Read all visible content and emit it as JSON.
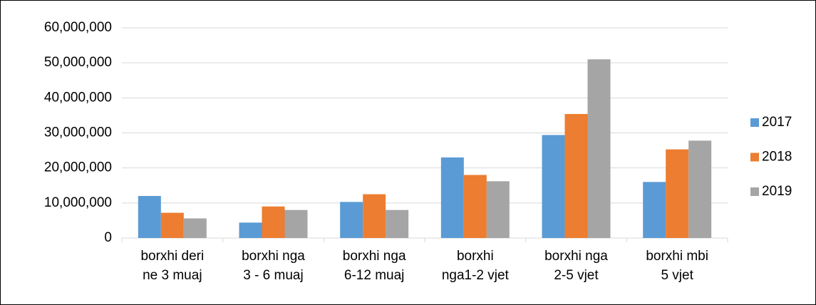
{
  "chart_data": {
    "type": "bar",
    "categories": [
      "borxhi deri\nne 3 muaj",
      "borxhi nga\n3 - 6 muaj",
      "borxhi  nga\n6-12 muaj",
      "borxhi\nnga1-2 vjet",
      "borxhi  nga\n2-5 vjet",
      "borxhi mbi\n5 vjet"
    ],
    "series": [
      {
        "name": "2017",
        "color": "#5b9bd5",
        "values": [
          12000000,
          4400000,
          10300000,
          23000000,
          29400000,
          16000000
        ]
      },
      {
        "name": "2018",
        "color": "#ed7d31",
        "values": [
          7200000,
          9000000,
          12500000,
          18000000,
          35400000,
          25300000
        ]
      },
      {
        "name": "2019",
        "color": "#a5a5a5",
        "values": [
          5600000,
          8000000,
          8000000,
          16200000,
          51000000,
          27800000
        ]
      }
    ],
    "ylim": [
      0,
      60000000
    ],
    "yticks": [
      0,
      {
        "value": 10000000,
        "label": "10,000,000"
      },
      {
        "value": 20000000,
        "label": "20,000,000"
      },
      {
        "value": 30000000,
        "label": "30,000,000"
      },
      {
        "value": 40000000,
        "label": "40,000,000"
      },
      {
        "value": 50000000,
        "label": "50,000,000"
      },
      {
        "value": 60000000,
        "label": "60,000,000"
      }
    ],
    "grid": true,
    "legend": "right"
  }
}
